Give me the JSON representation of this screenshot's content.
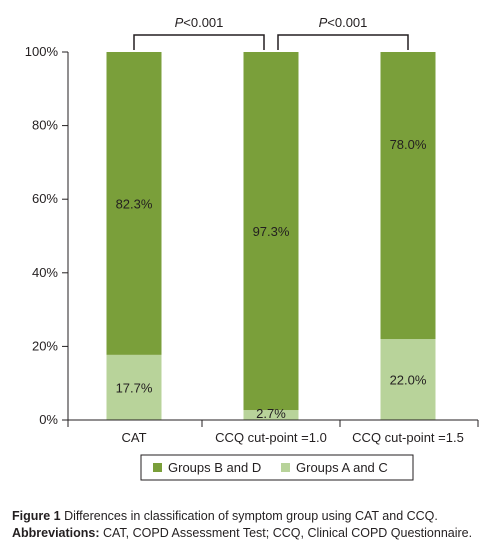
{
  "chart_data": {
    "type": "bar",
    "stacked": true,
    "categories": [
      "CAT",
      "CCQ cut-point =1.0",
      "CCQ cut-point =1.5"
    ],
    "series": [
      {
        "name": "Groups A and C",
        "values": [
          17.7,
          2.7,
          22.0
        ],
        "color": "#b8d39a",
        "labels": [
          "17.7%",
          "2.7%",
          "22.0%"
        ]
      },
      {
        "name": "Groups B and D",
        "values": [
          82.3,
          97.3,
          78.0
        ],
        "color": "#7a9f3a",
        "labels": [
          "82.3%",
          "97.3%",
          "78.0%"
        ]
      }
    ],
    "legend_order": [
      "Groups B and D",
      "Groups A and C"
    ],
    "legend_position": "bottom",
    "ylim": [
      0,
      100
    ],
    "yticks": [
      0,
      20,
      40,
      60,
      80,
      100
    ],
    "ytick_labels": [
      "0%",
      "20%",
      "40%",
      "60%",
      "80%",
      "100%"
    ],
    "grid": false,
    "xlabel": "",
    "ylabel": "",
    "annotations": [
      {
        "from": 0,
        "to": 1,
        "text_prefix": "P",
        "text_suffix": "<0.001"
      },
      {
        "from": 1,
        "to": 2,
        "text_prefix": "P",
        "text_suffix": "<0.001"
      }
    ]
  },
  "caption": {
    "figure_label": "Figure 1",
    "figure_text": "Differences in classification of symptom group using CAT and CCQ.",
    "abbrev_label": "Abbreviations:",
    "abbrev_text": "CAT, COPD Assessment Test; CCQ, Clinical COPD Questionnaire."
  }
}
